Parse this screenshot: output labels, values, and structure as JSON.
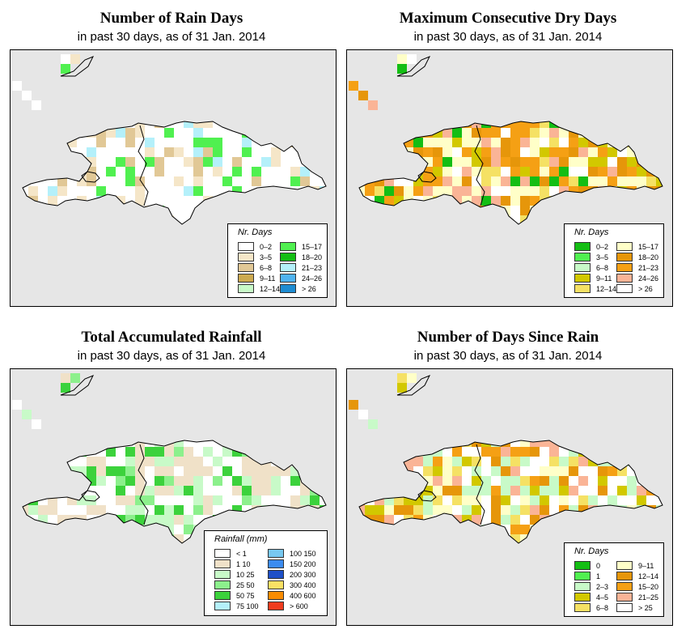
{
  "panels": [
    {
      "id": "rain_days",
      "title": "Number of Rain Days",
      "subtitle": "in past 30 days, as of  31 Jan. 2014",
      "legend_title": "Nr. Days",
      "legend": [
        {
          "label": "0–2",
          "color": "#ffffff"
        },
        {
          "label": "3–5",
          "color": "#f5e6c8"
        },
        {
          "label": "6–8",
          "color": "#e1c896"
        },
        {
          "label": "9–11",
          "color": "#cdaa50"
        },
        {
          "label": "12–14",
          "color": "#c8fac8"
        },
        {
          "label": "15–17",
          "color": "#50f050"
        },
        {
          "label": "18–20",
          "color": "#14be14"
        },
        {
          "label": "21–23",
          "color": "#b4f0fa"
        },
        {
          "label": "24–26",
          "color": "#50b4f0"
        },
        {
          "label": "> 26",
          "color": "#1e8cd2"
        }
      ]
    },
    {
      "id": "max_dry",
      "title": "Maximum Consecutive Dry Days",
      "subtitle": "in past 30 days, as of  31 Jan. 2014",
      "legend_title": "Nr. Days",
      "legend": [
        {
          "label": "0–2",
          "color": "#14be14"
        },
        {
          "label": "3–5",
          "color": "#50f050"
        },
        {
          "label": "6–8",
          "color": "#c8fac8"
        },
        {
          "label": "9–11",
          "color": "#d2c800"
        },
        {
          "label": "12–14",
          "color": "#f5e164"
        },
        {
          "label": "15–17",
          "color": "#ffffc8"
        },
        {
          "label": "18–20",
          "color": "#e6960a"
        },
        {
          "label": "21–23",
          "color": "#f5a014"
        },
        {
          "label": "24–26",
          "color": "#fab496"
        },
        {
          "label": "> 26",
          "color": "#ffffff"
        }
      ]
    },
    {
      "id": "total_rain",
      "title": "Total Accumulated Rainfall",
      "subtitle": "in past 30 days, as of  31 Jan. 2014",
      "legend_title": "Rainfall (mm)",
      "legend": [
        {
          "label": "< 1",
          "color": "#ffffff"
        },
        {
          "label": "1    10",
          "color": "#f0e1c8"
        },
        {
          "label": "10    25",
          "color": "#c8fac8"
        },
        {
          "label": "25    50",
          "color": "#8cf08c"
        },
        {
          "label": "50    75",
          "color": "#3cd23c"
        },
        {
          "label": "75   100",
          "color": "#b4f0fa"
        },
        {
          "label": "100   150",
          "color": "#78c8f0"
        },
        {
          "label": "150   200",
          "color": "#3c8cf0"
        },
        {
          "label": "200   300",
          "color": "#1e50c8"
        },
        {
          "label": "300   400",
          "color": "#fae164"
        },
        {
          "label": "400   600",
          "color": "#fa8c00"
        },
        {
          "label": "> 600",
          "color": "#f03c1e"
        }
      ]
    },
    {
      "id": "days_since",
      "title": "Number of Days Since Rain",
      "subtitle": "in past 30 days, as of  31 Jan. 2014",
      "legend_title": "Nr. Days",
      "legend": [
        {
          "label": "0",
          "color": "#14be14"
        },
        {
          "label": "1",
          "color": "#50f050"
        },
        {
          "label": "2–3",
          "color": "#c8fac8"
        },
        {
          "label": "4–5",
          "color": "#d2c800"
        },
        {
          "label": "6–8",
          "color": "#f5e164"
        },
        {
          "label": "9–11",
          "color": "#ffffc8"
        },
        {
          "label": "12–14",
          "color": "#e6960a"
        },
        {
          "label": "15–20",
          "color": "#f5a014"
        },
        {
          "label": "21–25",
          "color": "#fab496"
        },
        {
          "label": "> 25",
          "color": "#ffffff"
        }
      ]
    }
  ]
}
